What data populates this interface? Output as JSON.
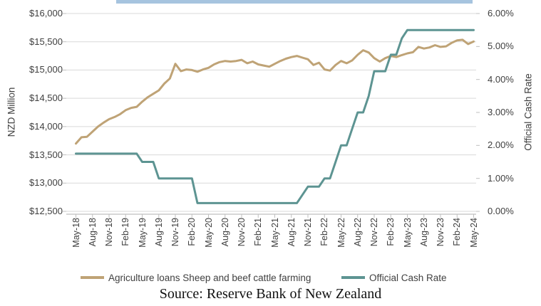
{
  "page": {
    "source_note": "Source: Reserve Bank of New Zealand"
  },
  "decor": {
    "top_band_color": "#A6C4DF"
  },
  "colors": {
    "gridline": "#D9D9D9",
    "axis_line": "#BFBFBF",
    "tick_mark": "#BFBFBF",
    "text": "#404040"
  },
  "chart_data": {
    "type": "line",
    "title": "",
    "grid": true,
    "legend_position": "bottom",
    "x": [
      "May-18",
      "Jun-18",
      "Jul-18",
      "Aug-18",
      "Sep-18",
      "Oct-18",
      "Nov-18",
      "Dec-18",
      "Jan-19",
      "Feb-19",
      "Mar-19",
      "Apr-19",
      "May-19",
      "Jun-19",
      "Jul-19",
      "Aug-19",
      "Sep-19",
      "Oct-19",
      "Nov-19",
      "Dec-19",
      "Jan-20",
      "Feb-20",
      "Mar-20",
      "Apr-20",
      "May-20",
      "Jun-20",
      "Jul-20",
      "Aug-20",
      "Sep-20",
      "Oct-20",
      "Nov-20",
      "Dec-20",
      "Jan-21",
      "Feb-21",
      "Mar-21",
      "Apr-21",
      "May-21",
      "Jun-21",
      "Jul-21",
      "Aug-21",
      "Sep-21",
      "Oct-21",
      "Nov-21",
      "Dec-21",
      "Jan-22",
      "Feb-22",
      "Mar-22",
      "Apr-22",
      "May-22",
      "Jun-22",
      "Jul-22",
      "Aug-22",
      "Sep-22",
      "Oct-22",
      "Nov-22",
      "Dec-22",
      "Jan-23",
      "Feb-23",
      "Mar-23",
      "Apr-23",
      "May-23",
      "Jun-23",
      "Jul-23",
      "Aug-23",
      "Sep-23",
      "Oct-23",
      "Nov-23",
      "Dec-23",
      "Jan-24",
      "Feb-24",
      "Mar-24",
      "Apr-24",
      "May-24"
    ],
    "x_tick_labels": [
      "May-18",
      "Aug-18",
      "Nov-18",
      "Feb-19",
      "May-19",
      "Aug-19",
      "Nov-19",
      "Feb-20",
      "May-20",
      "Aug-20",
      "Nov-20",
      "Feb-21",
      "May-21",
      "Aug-21",
      "Nov-21",
      "Feb-22",
      "May-22",
      "Aug-22",
      "Nov-22",
      "Feb-23",
      "May-23",
      "Aug-23",
      "Nov-23",
      "Feb-24",
      "May-24"
    ],
    "series": [
      {
        "name": "Agriculture loans Sheep and beef cattle farming",
        "axis": "left",
        "color": "#BFA376",
        "values": [
          13700,
          13810,
          13820,
          13910,
          14000,
          14070,
          14130,
          14170,
          14220,
          14290,
          14330,
          14350,
          14440,
          14520,
          14580,
          14640,
          14760,
          14850,
          15110,
          14980,
          15010,
          15000,
          14970,
          15010,
          15040,
          15100,
          15140,
          15160,
          15150,
          15160,
          15180,
          15120,
          15150,
          15100,
          15080,
          15060,
          15110,
          15160,
          15200,
          15230,
          15250,
          15220,
          15190,
          15090,
          15130,
          15010,
          14990,
          15090,
          15160,
          15120,
          15170,
          15270,
          15350,
          15310,
          15210,
          15150,
          15210,
          15250,
          15230,
          15265,
          15295,
          15315,
          15410,
          15380,
          15400,
          15440,
          15410,
          15420,
          15480,
          15525,
          15535,
          15460,
          15505
        ]
      },
      {
        "name": "Official Cash Rate",
        "axis": "right",
        "color": "#5D9492",
        "values": [
          1.75,
          1.75,
          1.75,
          1.75,
          1.75,
          1.75,
          1.75,
          1.75,
          1.75,
          1.75,
          1.75,
          1.75,
          1.5,
          1.5,
          1.5,
          1.0,
          1.0,
          1.0,
          1.0,
          1.0,
          1.0,
          1.0,
          0.25,
          0.25,
          0.25,
          0.25,
          0.25,
          0.25,
          0.25,
          0.25,
          0.25,
          0.25,
          0.25,
          0.25,
          0.25,
          0.25,
          0.25,
          0.25,
          0.25,
          0.25,
          0.25,
          0.5,
          0.75,
          0.75,
          0.75,
          1.0,
          1.0,
          1.5,
          2.0,
          2.0,
          2.5,
          3.0,
          3.0,
          3.5,
          4.25,
          4.25,
          4.25,
          4.75,
          4.75,
          5.25,
          5.5,
          5.5,
          5.5,
          5.5,
          5.5,
          5.5,
          5.5,
          5.5,
          5.5,
          5.5,
          5.5,
          5.5,
          5.5
        ]
      }
    ],
    "left_axis": {
      "label": "NZD Million",
      "min": 12500,
      "max": 16000,
      "step": 500,
      "tick_labels": [
        "$16,000",
        "$15,500",
        "$15,000",
        "$14,500",
        "$14,000",
        "$13,500",
        "$13,000",
        "$12,500"
      ]
    },
    "right_axis": {
      "label": "Official Cash Rate",
      "min": 0,
      "max": 6,
      "step": 1,
      "tick_labels": [
        "6.00%",
        "5.00%",
        "4.00%",
        "3.00%",
        "2.00%",
        "1.00%",
        "0.00%"
      ]
    }
  }
}
